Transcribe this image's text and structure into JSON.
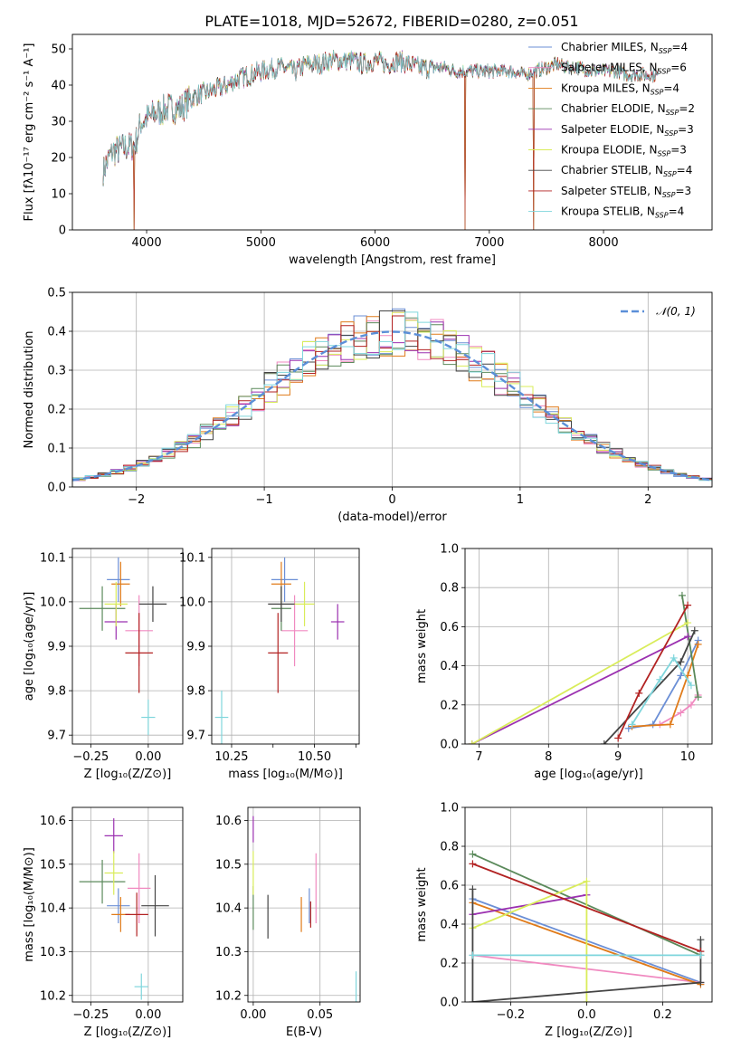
{
  "figure_title": "PLATE=1018, MJD=52672, FIBERID=0280, z=0.051",
  "models": [
    {
      "name": "Chabrier MILES",
      "nssp": "4",
      "color": "#6b8fd6"
    },
    {
      "name": "Salpeter MILES",
      "nssp": "6",
      "color": "#f08ac0"
    },
    {
      "name": "Kroupa MILES",
      "nssp": "4",
      "color": "#e07b1a"
    },
    {
      "name": "Chabrier ELODIE",
      "nssp": "2",
      "color": "#5b8a5b"
    },
    {
      "name": "Salpeter ELODIE",
      "nssp": "3",
      "color": "#9b30b0"
    },
    {
      "name": "Kroupa ELODIE",
      "nssp": "3",
      "color": "#d9ec5a"
    },
    {
      "name": "Chabrier STELIB",
      "nssp": "4",
      "color": "#444444"
    },
    {
      "name": "Salpeter STELIB",
      "nssp": "3",
      "color": "#b22222"
    },
    {
      "name": "Kroupa STELIB",
      "nssp": "4",
      "color": "#7fd6dc"
    }
  ],
  "chart_data": [
    {
      "id": "spectrum",
      "type": "line",
      "xlabel": "wavelength [Angstrom, rest frame]",
      "ylabel": "Flux [fλ10⁻¹⁷ erg cm⁻² s⁻¹ A⁻¹]",
      "xlim": [
        3350,
        8950
      ],
      "ylim": [
        0,
        54
      ],
      "xticks": [
        4000,
        5000,
        6000,
        7000,
        8000
      ],
      "yticks": [
        0,
        10,
        20,
        30,
        40,
        50
      ],
      "legend": "right",
      "continuum": [
        [
          3620,
          17
        ],
        [
          3700,
          22
        ],
        [
          3800,
          23
        ],
        [
          3900,
          24
        ],
        [
          3950,
          30
        ],
        [
          4000,
          31
        ],
        [
          4100,
          33
        ],
        [
          4200,
          34
        ],
        [
          4300,
          34
        ],
        [
          4400,
          37
        ],
        [
          4500,
          38
        ],
        [
          4600,
          39
        ],
        [
          4700,
          40
        ],
        [
          4800,
          42
        ],
        [
          4900,
          43
        ],
        [
          5000,
          44
        ],
        [
          5100,
          45
        ],
        [
          5200,
          45
        ],
        [
          5300,
          44
        ],
        [
          5400,
          46
        ],
        [
          5500,
          46
        ],
        [
          5600,
          47
        ],
        [
          5700,
          47
        ],
        [
          5800,
          47
        ],
        [
          5900,
          46
        ],
        [
          6000,
          47
        ],
        [
          6100,
          46
        ],
        [
          6200,
          47
        ],
        [
          6300,
          46
        ],
        [
          6400,
          45
        ],
        [
          6500,
          45
        ],
        [
          6600,
          45
        ],
        [
          6700,
          44
        ],
        [
          6800,
          44
        ],
        [
          6900,
          44
        ],
        [
          7000,
          44
        ],
        [
          7100,
          44
        ],
        [
          7200,
          44
        ],
        [
          7300,
          43
        ],
        [
          7400,
          44
        ],
        [
          7500,
          45
        ],
        [
          7600,
          46
        ],
        [
          7700,
          45
        ],
        [
          7800,
          45
        ],
        [
          7900,
          44
        ],
        [
          8000,
          44
        ],
        [
          8100,
          44
        ],
        [
          8200,
          43
        ],
        [
          8300,
          43
        ],
        [
          8400,
          43
        ],
        [
          8480,
          43
        ]
      ],
      "dips": [
        [
          3890,
          0
        ],
        [
          6790,
          0
        ],
        [
          7390,
          0
        ]
      ]
    },
    {
      "id": "residuals",
      "type": "line",
      "xlabel": "(data-model)/error",
      "ylabel": "Normed distribution",
      "xlim": [
        -2.5,
        2.5
      ],
      "ylim": [
        0,
        0.5
      ],
      "xticks": [
        -2,
        -1,
        0,
        1,
        2
      ],
      "yticks": [
        0,
        0.1,
        0.2,
        0.3,
        0.4,
        0.5
      ],
      "grid": true,
      "bin_width": 0.1,
      "reference_label": "𝒩(0, 1)",
      "reference_color": "#5b8fd8",
      "legend": "top-right"
    },
    {
      "id": "age_vs_Z",
      "type": "scatter",
      "xlabel": "Z [log₁₀(Z/Z⊙)]",
      "ylabel": "age  [log₁₀(age/yr)]",
      "xlim": [
        -0.33,
        0.15
      ],
      "ylim": [
        9.68,
        10.12
      ],
      "xticks": [
        -0.25,
        0,
        0.25
      ],
      "xtick_labels": [
        "−0.25",
        "0.00",
        ""
      ],
      "yticks": [
        9.7,
        9.8,
        9.9,
        10.0,
        10.1
      ],
      "points": [
        {
          "model": 0,
          "x": -0.13,
          "y": 10.05,
          "xerr": 0.05,
          "yerr": 0.05
        },
        {
          "model": 1,
          "x": -0.04,
          "y": 9.935,
          "xerr": 0.06,
          "yerr": 0.08
        },
        {
          "model": 2,
          "x": -0.12,
          "y": 10.04,
          "xerr": 0.04,
          "yerr": 0.05
        },
        {
          "model": 3,
          "x": -0.2,
          "y": 9.985,
          "xerr": 0.1,
          "yerr": 0.05
        },
        {
          "model": 4,
          "x": -0.14,
          "y": 9.955,
          "xerr": 0.05,
          "yerr": 0.04
        },
        {
          "model": 5,
          "x": -0.14,
          "y": 9.995,
          "xerr": 0.05,
          "yerr": 0.05
        },
        {
          "model": 6,
          "x": 0.02,
          "y": 9.995,
          "xerr": 0.06,
          "yerr": 0.04
        },
        {
          "model": 7,
          "x": -0.04,
          "y": 9.885,
          "xerr": 0.06,
          "yerr": 0.09
        },
        {
          "model": 8,
          "x": 0.0,
          "y": 9.74,
          "xerr": 0.03,
          "yerr": 0.04
        }
      ]
    },
    {
      "id": "age_vs_mass",
      "type": "scatter",
      "xlabel": "mass [log₁₀(M/M⊙)]",
      "ylabel": "",
      "xlim": [
        10.19,
        10.635
      ],
      "ylim": [
        9.68,
        10.12
      ],
      "xticks": [
        10.25,
        10.5
      ],
      "xtick_labels": [
        "10.25",
        "10.50"
      ],
      "minor_xticks": [
        10.375,
        10.625
      ],
      "minor_xtick_labels": [
        "",
        ""
      ],
      "yticks": [
        9.7,
        9.8,
        9.9,
        10.0,
        10.1
      ],
      "points": [
        {
          "model": 0,
          "x": 10.41,
          "y": 10.05,
          "xerr": 0.04,
          "yerr": 0.05
        },
        {
          "model": 1,
          "x": 10.44,
          "y": 9.935,
          "xerr": 0.04,
          "yerr": 0.08
        },
        {
          "model": 2,
          "x": 10.4,
          "y": 10.04,
          "xerr": 0.03,
          "yerr": 0.05
        },
        {
          "model": 3,
          "x": 10.4,
          "y": 9.985,
          "xerr": 0.03,
          "yerr": 0.05
        },
        {
          "model": 4,
          "x": 10.57,
          "y": 9.955,
          "xerr": 0.02,
          "yerr": 0.04
        },
        {
          "model": 5,
          "x": 10.47,
          "y": 9.995,
          "xerr": 0.03,
          "yerr": 0.05
        },
        {
          "model": 6,
          "x": 10.4,
          "y": 9.995,
          "xerr": 0.04,
          "yerr": 0.04
        },
        {
          "model": 7,
          "x": 10.39,
          "y": 9.885,
          "xerr": 0.03,
          "yerr": 0.09
        },
        {
          "model": 8,
          "x": 10.22,
          "y": 9.74,
          "xerr": 0.02,
          "yerr": 0.06
        }
      ]
    },
    {
      "id": "mass_weight_vs_age",
      "type": "line",
      "xlabel": "age  [log₁₀(age/yr)]",
      "ylabel": "mass weight",
      "xlim": [
        6.8,
        10.35
      ],
      "ylim": [
        0,
        1
      ],
      "xticks": [
        7,
        8,
        9,
        10
      ],
      "yticks": [
        0,
        0.2,
        0.4,
        0.6,
        0.8,
        1.0
      ],
      "series": [
        {
          "model": 0,
          "x": [
            9.15,
            9.5,
            9.9,
            10.15
          ],
          "y": [
            0.08,
            0.1,
            0.35,
            0.53
          ]
        },
        {
          "model": 1,
          "x": [
            9.6,
            9.9,
            10.05,
            10.15
          ],
          "y": [
            0.1,
            0.16,
            0.2,
            0.25
          ]
        },
        {
          "model": 2,
          "x": [
            9.2,
            9.75,
            10.0,
            10.15
          ],
          "y": [
            0.09,
            0.1,
            0.35,
            0.51
          ]
        },
        {
          "model": 3,
          "x": [
            9.92,
            10.15
          ],
          "y": [
            0.76,
            0.24
          ]
        },
        {
          "model": 4,
          "x": [
            6.9,
            10.0
          ],
          "y": [
            0.0,
            0.55
          ]
        },
        {
          "model": 5,
          "x": [
            6.9,
            10.0
          ],
          "y": [
            0.0,
            0.62
          ]
        },
        {
          "model": 6,
          "x": [
            8.8,
            9.9,
            10.1
          ],
          "y": [
            0.0,
            0.42,
            0.58
          ]
        },
        {
          "model": 7,
          "x": [
            9.0,
            9.3,
            10.0
          ],
          "y": [
            0.03,
            0.26,
            0.71
          ]
        },
        {
          "model": 8,
          "x": [
            9.2,
            9.6,
            9.8,
            10.05
          ],
          "y": [
            0.1,
            0.33,
            0.44,
            0.3
          ]
        }
      ]
    },
    {
      "id": "mass_vs_Z",
      "type": "scatter",
      "xlabel": "Z [log₁₀(Z/Z⊙)]",
      "ylabel": "mass [log₁₀(M/M⊙)]",
      "xlim": [
        -0.33,
        0.15
      ],
      "ylim": [
        10.185,
        10.63
      ],
      "xticks": [
        -0.25,
        0,
        0.25
      ],
      "xtick_labels": [
        "−0.25",
        "0.00",
        ""
      ],
      "yticks": [
        10.2,
        10.3,
        10.4,
        10.5,
        10.6
      ],
      "points": [
        {
          "model": 0,
          "x": -0.13,
          "y": 10.405,
          "xerr": 0.05,
          "yerr": 0.04
        },
        {
          "model": 1,
          "x": -0.04,
          "y": 10.445,
          "xerr": 0.05,
          "yerr": 0.08
        },
        {
          "model": 2,
          "x": -0.12,
          "y": 10.385,
          "xerr": 0.04,
          "yerr": 0.04
        },
        {
          "model": 3,
          "x": -0.2,
          "y": 10.46,
          "xerr": 0.1,
          "yerr": 0.05
        },
        {
          "model": 4,
          "x": -0.15,
          "y": 10.565,
          "xerr": 0.04,
          "yerr": 0.04
        },
        {
          "model": 5,
          "x": -0.15,
          "y": 10.48,
          "xerr": 0.04,
          "yerr": 0.05
        },
        {
          "model": 6,
          "x": 0.03,
          "y": 10.405,
          "xerr": 0.06,
          "yerr": 0.07
        },
        {
          "model": 7,
          "x": -0.05,
          "y": 10.385,
          "xerr": 0.05,
          "yerr": 0.05
        },
        {
          "model": 8,
          "x": -0.03,
          "y": 10.22,
          "xerr": 0.03,
          "yerr": 0.03
        }
      ]
    },
    {
      "id": "mass_vs_ebv",
      "type": "scatter",
      "xlabel": "E(B-V)",
      "ylabel": "",
      "xlim": [
        -0.004,
        0.08
      ],
      "ylim": [
        10.185,
        10.63
      ],
      "xticks": [
        0.0,
        0.05
      ],
      "xtick_labels": [
        "0.00",
        "0.05"
      ],
      "yticks": [
        10.2,
        10.3,
        10.4,
        10.5,
        10.6
      ],
      "points": [
        {
          "model": 0,
          "x": 0.042,
          "y": 10.405,
          "xerr": 0.0,
          "yerr": 0.04
        },
        {
          "model": 1,
          "x": 0.047,
          "y": 10.445,
          "xerr": 0.0,
          "yerr": 0.08
        },
        {
          "model": 2,
          "x": 0.036,
          "y": 10.385,
          "xerr": 0.0,
          "yerr": 0.04
        },
        {
          "model": 3,
          "x": 0.0,
          "y": 10.4,
          "xerr": 0.0,
          "yerr": 0.05
        },
        {
          "model": 4,
          "x": 0.0,
          "y": 10.58,
          "xerr": 0.0,
          "yerr": 0.03
        },
        {
          "model": 5,
          "x": 0.0,
          "y": 10.48,
          "xerr": 0.0,
          "yerr": 0.05
        },
        {
          "model": 6,
          "x": 0.011,
          "y": 10.38,
          "xerr": 0.0,
          "yerr": 0.05
        },
        {
          "model": 7,
          "x": 0.043,
          "y": 10.385,
          "xerr": 0.0,
          "yerr": 0.03
        },
        {
          "model": 8,
          "x": 0.077,
          "y": 10.22,
          "xerr": 0.0,
          "yerr": 0.035
        }
      ]
    },
    {
      "id": "mass_weight_vs_Z",
      "type": "line",
      "xlabel": "Z [log₁₀(Z/Z⊙)]",
      "ylabel": "mass weight",
      "xlim": [
        -0.32,
        0.33
      ],
      "ylim": [
        0,
        1
      ],
      "xticks": [
        -0.2,
        0.0,
        0.2
      ],
      "xtick_labels": [
        "−0.2",
        "0.0",
        "0.2"
      ],
      "yticks": [
        0,
        0.2,
        0.4,
        0.6,
        0.8,
        1.0
      ],
      "series": [
        {
          "model": 0,
          "x": [
            -0.3,
            0.3
          ],
          "y": [
            0.53,
            0.1
          ]
        },
        {
          "model": 1,
          "x": [
            -0.3,
            0.3
          ],
          "y": [
            0.24,
            0.1
          ]
        },
        {
          "model": 2,
          "x": [
            -0.3,
            0.3
          ],
          "y": [
            0.51,
            0.09
          ]
        },
        {
          "model": 3,
          "x": [
            -0.3,
            0.3
          ],
          "y": [
            0.76,
            0.24
          ]
        },
        {
          "model": 4,
          "x": [
            -0.3,
            0.0
          ],
          "y": [
            0.45,
            0.55
          ]
        },
        {
          "model": 5,
          "x": [
            -0.3,
            0.0,
            0.0
          ],
          "y": [
            0.38,
            0.62,
            0.0
          ]
        },
        {
          "model": 6,
          "x": [
            -0.3,
            -0.3,
            0.3,
            0.3
          ],
          "y": [
            0.58,
            0.0,
            0.1,
            0.32
          ]
        },
        {
          "model": 7,
          "x": [
            -0.3,
            0.3
          ],
          "y": [
            0.71,
            0.26
          ]
        },
        {
          "model": 8,
          "x": [
            -0.3,
            0.3
          ],
          "y": [
            0.24,
            0.24
          ]
        }
      ]
    }
  ]
}
